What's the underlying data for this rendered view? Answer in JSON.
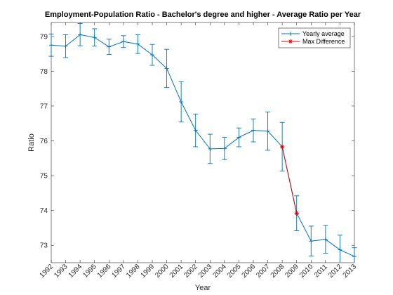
{
  "chart_data": {
    "type": "line",
    "title": "Employment-Population Ratio - Bachelor's degree and higher - Average Ratio per Year",
    "xlabel": "Year",
    "ylabel": "Ratio",
    "xlim": [
      1992,
      2013
    ],
    "ylim": [
      72.5,
      79.4
    ],
    "grid": false,
    "legend_position": "top-right",
    "x_ticks": [
      "1992",
      "1993",
      "1994",
      "1995",
      "1996",
      "1997",
      "1998",
      "1999",
      "2000",
      "2001",
      "2002",
      "2003",
      "2004",
      "2005",
      "2006",
      "2007",
      "2008",
      "2009",
      "2010",
      "2011",
      "2012",
      "2013"
    ],
    "y_ticks": [
      "73",
      "74",
      "75",
      "76",
      "77",
      "78",
      "79"
    ],
    "series": [
      {
        "name": "Yearly average",
        "color": "#0072BD",
        "marker": "plus",
        "x": [
          1992,
          1993,
          1994,
          1995,
          1996,
          1997,
          1998,
          1999,
          2000,
          2001,
          2002,
          2003,
          2004,
          2005,
          2006,
          2007,
          2008,
          2009,
          2010,
          2011,
          2012,
          2013
        ],
        "y": [
          78.75,
          78.72,
          79.05,
          78.97,
          78.7,
          78.85,
          78.78,
          78.47,
          78.08,
          77.12,
          76.3,
          75.77,
          75.78,
          76.1,
          76.3,
          76.28,
          75.83,
          73.92,
          73.12,
          73.17,
          72.87,
          72.68
        ],
        "err": [
          0.32,
          0.33,
          0.32,
          0.25,
          0.22,
          0.17,
          0.27,
          0.3,
          0.55,
          0.58,
          0.47,
          0.42,
          0.32,
          0.27,
          0.33,
          0.55,
          0.7,
          0.5,
          0.43,
          0.4,
          0.42,
          0.25
        ]
      },
      {
        "name": "Max Difference",
        "color": "#D90000",
        "marker": "asterisk",
        "x": [
          2008,
          2009
        ],
        "y": [
          75.83,
          73.92
        ]
      }
    ]
  }
}
